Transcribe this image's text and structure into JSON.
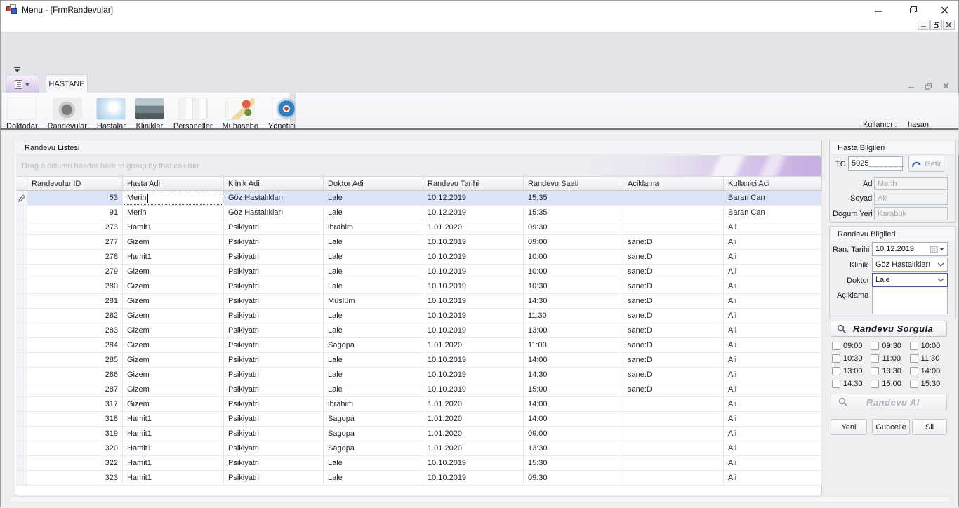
{
  "window": {
    "title": "Menu - [FrmRandevular]"
  },
  "ribbon": {
    "tab": "HASTANE",
    "items": [
      {
        "label": "Doktorlar"
      },
      {
        "label": "Randevular"
      },
      {
        "label": "Hastalar"
      },
      {
        "label": "Klinikler"
      },
      {
        "label": "Personeller"
      },
      {
        "label": "Muhasebe"
      },
      {
        "label": "Yöneticiler"
      }
    ],
    "user_label": "Kullanıcı :",
    "user_value": "hasan"
  },
  "grid": {
    "group_title": "Randevu Listesi",
    "drag_hint": "Drag a column header here to group by that column",
    "columns": [
      "Randevular ID",
      "Hasta Adi",
      "Klinik Adi",
      "Doktor Adi",
      "Randevu Tarihi",
      "Randevu Saati",
      "Aciklama",
      "Kullanici Adi"
    ],
    "selected_row": 0,
    "editing_cell": {
      "row": 0,
      "field": "hasta"
    },
    "rows": [
      {
        "id": "53",
        "hasta": "Merih",
        "klinik": "Göz Hastalıkları",
        "doktor": "Lale",
        "tarih": "10.12.2019",
        "saat": "15:35",
        "aciklama": "",
        "kullanici": "Baran Can"
      },
      {
        "id": "91",
        "hasta": "Merih",
        "klinik": "Göz Hastalıkları",
        "doktor": "Lale",
        "tarih": "10.12.2019",
        "saat": "15:35",
        "aciklama": "",
        "kullanici": "Baran Can"
      },
      {
        "id": "273",
        "hasta": "Hamit1",
        "klinik": "Psikiyatri",
        "doktor": "ibrahim",
        "tarih": "1.01.2020",
        "saat": "09:30",
        "aciklama": "",
        "kullanici": "Ali"
      },
      {
        "id": "277",
        "hasta": "Gizem",
        "klinik": "Psikiyatri",
        "doktor": "Lale",
        "tarih": "10.10.2019",
        "saat": "09:00",
        "aciklama": "sane:D",
        "kullanici": "Ali"
      },
      {
        "id": "278",
        "hasta": "Hamit1",
        "klinik": "Psikiyatri",
        "doktor": "Lale",
        "tarih": "10.10.2019",
        "saat": "10:00",
        "aciklama": "sane:D",
        "kullanici": "Ali"
      },
      {
        "id": "279",
        "hasta": "Gizem",
        "klinik": "Psikiyatri",
        "doktor": "Lale",
        "tarih": "10.10.2019",
        "saat": "10:00",
        "aciklama": "sane:D",
        "kullanici": "Ali"
      },
      {
        "id": "280",
        "hasta": "Gizem",
        "klinik": "Psikiyatri",
        "doktor": "Lale",
        "tarih": "10.10.2019",
        "saat": "10:30",
        "aciklama": "sane:D",
        "kullanici": "Ali"
      },
      {
        "id": "281",
        "hasta": "Gizem",
        "klinik": "Psikiyatri",
        "doktor": "Müslüm",
        "tarih": "10.10.2019",
        "saat": "14:30",
        "aciklama": "sane:D",
        "kullanici": "Ali"
      },
      {
        "id": "282",
        "hasta": "Gizem",
        "klinik": "Psikiyatri",
        "doktor": "Lale",
        "tarih": "10.10.2019",
        "saat": "11:30",
        "aciklama": "sane:D",
        "kullanici": "Ali"
      },
      {
        "id": "283",
        "hasta": "Gizem",
        "klinik": "Psikiyatri",
        "doktor": "Lale",
        "tarih": "10.10.2019",
        "saat": "13:00",
        "aciklama": "sane:D",
        "kullanici": "Ali"
      },
      {
        "id": "284",
        "hasta": "Gizem",
        "klinik": "Psikiyatri",
        "doktor": "Sagopa",
        "tarih": "1.01.2020",
        "saat": "11:00",
        "aciklama": "sane:D",
        "kullanici": "Ali"
      },
      {
        "id": "285",
        "hasta": "Gizem",
        "klinik": "Psikiyatri",
        "doktor": "Lale",
        "tarih": "10.10.2019",
        "saat": "14:00",
        "aciklama": "sane:D",
        "kullanici": "Ali"
      },
      {
        "id": "286",
        "hasta": "Gizem",
        "klinik": "Psikiyatri",
        "doktor": "Lale",
        "tarih": "10.10.2019",
        "saat": "14:30",
        "aciklama": "sane:D",
        "kullanici": "Ali"
      },
      {
        "id": "287",
        "hasta": "Gizem",
        "klinik": "Psikiyatri",
        "doktor": "Lale",
        "tarih": "10.10.2019",
        "saat": "15:00",
        "aciklama": "sane:D",
        "kullanici": "Ali"
      },
      {
        "id": "317",
        "hasta": "Gizem",
        "klinik": "Psikiyatri",
        "doktor": "ibrahim",
        "tarih": "1.01.2020",
        "saat": "14:00",
        "aciklama": "",
        "kullanici": "Ali"
      },
      {
        "id": "318",
        "hasta": "Hamit1",
        "klinik": "Psikiyatri",
        "doktor": "Sagopa",
        "tarih": "1.01.2020",
        "saat": "14:00",
        "aciklama": "",
        "kullanici": "Ali"
      },
      {
        "id": "319",
        "hasta": "Hamit1",
        "klinik": "Psikiyatri",
        "doktor": "Sagopa",
        "tarih": "1.01.2020",
        "saat": "09:00",
        "aciklama": "",
        "kullanici": "Ali"
      },
      {
        "id": "320",
        "hasta": "Hamit1",
        "klinik": "Psikiyatri",
        "doktor": "Sagopa",
        "tarih": "1.01.2020",
        "saat": "13:30",
        "aciklama": "",
        "kullanici": "Ali"
      },
      {
        "id": "322",
        "hasta": "Hamit1",
        "klinik": "Psikiyatri",
        "doktor": "Lale",
        "tarih": "10.10.2019",
        "saat": "15:30",
        "aciklama": "",
        "kullanici": "Ali"
      },
      {
        "id": "323",
        "hasta": "Hamit1",
        "klinik": "Psikiyatri",
        "doktor": "Lale",
        "tarih": "10.10.2019",
        "saat": "09:30",
        "aciklama": "",
        "kullanici": "Ali"
      }
    ]
  },
  "hasta": {
    "title": "Hasta Bilgileri",
    "tc_label": "TC",
    "tc_value": "5025",
    "tc_mask": "_______",
    "getir_label": "Getir",
    "ad_label": "Ad",
    "ad_value": "Merih",
    "soyad_label": "Soyad",
    "soyad_value": "Ak",
    "dogum_label": "Dogum Yeri",
    "dogum_value": "Karabük"
  },
  "randevu": {
    "title": "Randevu Bilgileri",
    "tarih_label": "Ran. Tarihi",
    "tarih_value": "10.12.2019",
    "klinik_label": "Klinik",
    "klinik_value": "Göz Hastalıkları",
    "doktor_label": "Doktor",
    "doktor_value": "Lale",
    "aciklama_label": "Açıklama",
    "aciklama_value": ""
  },
  "times": [
    "09:00",
    "09:30",
    "10:00",
    "10:30",
    "11:00",
    "11:30",
    "13:00",
    "13:30",
    "14:00",
    "14:30",
    "15:00",
    "15:30"
  ],
  "actions": {
    "sorgula": "Randevu Sorgula",
    "al": "Randevu Al",
    "yeni": "Yeni",
    "guncelle": "Guncelle",
    "sil": "Sil"
  },
  "colors": {
    "selected_row": "#dbe5f7",
    "group_panel_accent": "#c9aee2",
    "ribbon_bg": "#e2e4e8"
  }
}
